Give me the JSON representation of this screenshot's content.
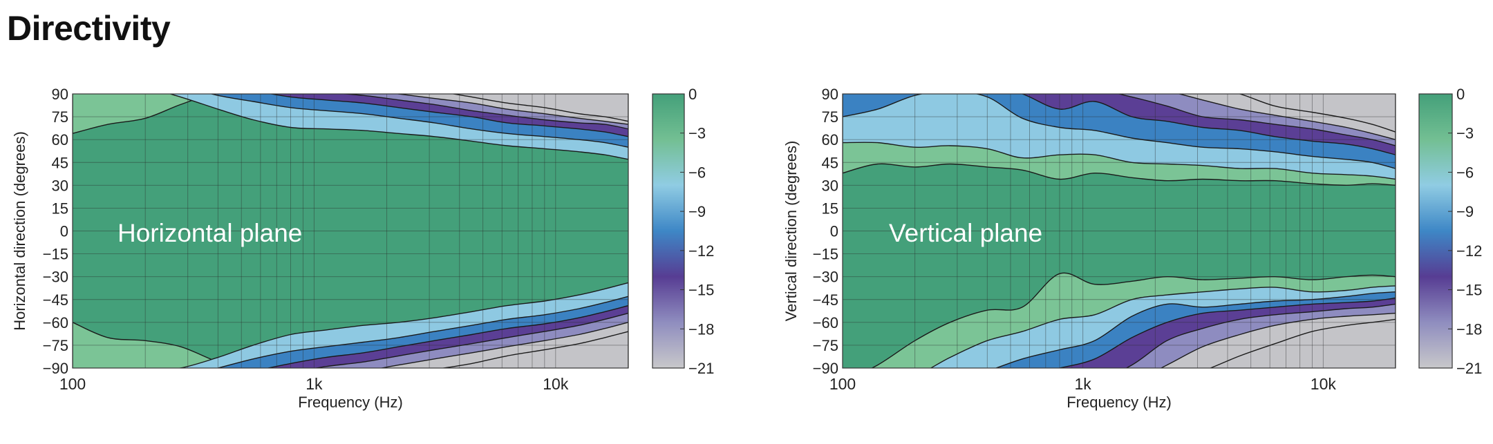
{
  "page": {
    "title": "Directivity"
  },
  "chart_data": [
    {
      "type": "contour",
      "plane_label": "Horizontal plane",
      "xlabel": "Frequency (Hz)",
      "ylabel": "Horizontal direction (degrees)",
      "xscale": "log",
      "xlim": [
        100,
        20000
      ],
      "ylim": [
        -90,
        90
      ],
      "x_ticks": [
        100,
        1000,
        10000
      ],
      "x_tick_labels": [
        "100",
        "1k",
        "10k"
      ],
      "y_ticks": [
        90,
        75,
        60,
        45,
        30,
        15,
        0,
        -15,
        -30,
        -45,
        -60,
        -75,
        -90
      ],
      "y_tick_labels": [
        "90",
        "75",
        "60",
        "45",
        "30",
        "15",
        "0",
        "-15",
        "-30",
        "-45",
        "-60",
        "-75",
        "-90"
      ],
      "contour_levels_db": [
        -3,
        -6,
        -9,
        -12,
        -15,
        -18,
        -21
      ],
      "freq_hz": [
        100,
        140,
        200,
        280,
        400,
        560,
        800,
        1120,
        1600,
        2240,
        3150,
        4500,
        6300,
        9000,
        12500,
        16000,
        20000
      ],
      "contours": {
        "upper": [
          [
            64,
            70,
            74,
            83,
            91,
            93,
            94,
            95,
            95,
            95,
            95,
            96,
            96,
            96,
            96,
            96,
            96
          ],
          [
            95,
            95,
            94,
            88,
            80,
            73,
            68,
            67,
            66,
            64,
            62,
            59,
            56,
            54,
            52,
            50,
            47
          ],
          [
            98,
            98,
            97,
            95,
            89,
            85,
            81,
            79,
            77,
            74,
            71,
            67,
            64,
            62,
            60,
            58,
            55
          ],
          [
            99,
            99,
            99,
            98,
            95,
            92,
            88,
            86,
            84,
            81,
            78,
            75,
            71,
            69,
            67,
            65,
            62
          ],
          [
            99,
            99,
            99,
            99,
            98,
            96,
            93,
            91,
            89,
            86,
            83,
            79,
            76,
            73,
            71,
            70,
            67
          ],
          [
            99,
            99,
            99,
            99,
            99,
            99,
            97,
            95,
            93,
            90,
            87,
            84,
            80,
            77,
            74,
            72,
            70
          ],
          [
            99,
            99,
            99,
            99,
            99,
            99,
            99,
            98,
            97,
            95,
            92,
            88,
            84,
            81,
            77,
            75,
            72
          ]
        ],
        "lower": [
          [
            -60,
            -70,
            -72,
            -76,
            -86,
            -93,
            -94,
            -95,
            -95,
            -95,
            -95,
            -96,
            -96,
            -96,
            -96,
            -96,
            -96
          ],
          [
            -92,
            -92,
            -92,
            -90,
            -83,
            -75,
            -68,
            -65,
            -62,
            -60,
            -57,
            -53,
            -49,
            -46,
            -42,
            -38,
            -34
          ],
          [
            -98,
            -98,
            -98,
            -96,
            -90,
            -84,
            -79,
            -76,
            -73,
            -70,
            -66,
            -62,
            -58,
            -55,
            -51,
            -47,
            -43
          ],
          [
            -99,
            -99,
            -99,
            -99,
            -96,
            -92,
            -87,
            -83,
            -80,
            -76,
            -72,
            -68,
            -64,
            -61,
            -57,
            -53,
            -49
          ],
          [
            -99,
            -99,
            -99,
            -99,
            -99,
            -97,
            -93,
            -89,
            -86,
            -82,
            -78,
            -74,
            -70,
            -66,
            -62,
            -58,
            -54
          ],
          [
            -99,
            -99,
            -99,
            -99,
            -99,
            -99,
            -98,
            -95,
            -92,
            -88,
            -84,
            -80,
            -76,
            -72,
            -68,
            -64,
            -60
          ],
          [
            -99,
            -99,
            -99,
            -99,
            -99,
            -99,
            -99,
            -99,
            -98,
            -95,
            -91,
            -87,
            -82,
            -78,
            -74,
            -70,
            -66
          ]
        ]
      },
      "colorbar": {
        "range": [
          -21,
          0
        ],
        "tick_labels": [
          "0",
          "−3",
          "−6",
          "−9",
          "−12",
          "−15",
          "−18",
          "−21"
        ],
        "colors": [
          "#44A07A",
          "#7BC496",
          "#8EC9E2",
          "#3B82C2",
          "#5B3F95",
          "#8E8CC0",
          "#C4C4C8"
        ],
        "gradient": [
          "#44A07A",
          "#73BF93",
          "#90CCE3",
          "#3E87C6",
          "#573D93",
          "#8F8DBF",
          "#C8C8CA"
        ]
      }
    },
    {
      "type": "contour",
      "plane_label": "Vertical plane",
      "xlabel": "Frequency (Hz)",
      "ylabel": "Vertical direction (degrees)",
      "xscale": "log",
      "xlim": [
        100,
        20000
      ],
      "ylim": [
        -90,
        90
      ],
      "x_ticks": [
        100,
        1000,
        10000
      ],
      "x_tick_labels": [
        "100",
        "1k",
        "10k"
      ],
      "y_ticks": [
        90,
        75,
        60,
        45,
        30,
        15,
        0,
        -15,
        -30,
        -45,
        -60,
        -75,
        -90
      ],
      "y_tick_labels": [
        "90",
        "75",
        "60",
        "45",
        "30",
        "15",
        "0",
        "-15",
        "-30",
        "-45",
        "-60",
        "-75",
        "-90"
      ],
      "contour_levels_db": [
        -3,
        -6,
        -9,
        -12,
        -15,
        -18,
        -21
      ],
      "freq_hz": [
        100,
        140,
        200,
        280,
        400,
        560,
        800,
        1120,
        1600,
        2240,
        3150,
        4500,
        6300,
        9000,
        12500,
        16000,
        20000
      ],
      "contours": {
        "upper": [
          [
            38,
            44,
            42,
            44,
            42,
            40,
            34,
            38,
            35,
            33,
            34,
            33,
            33,
            31,
            30,
            31,
            30
          ],
          [
            58,
            58,
            55,
            56,
            54,
            48,
            50,
            50,
            45,
            44,
            43,
            41,
            41,
            38,
            37,
            36,
            34
          ],
          [
            75,
            80,
            89,
            92,
            88,
            74,
            68,
            66,
            61,
            58,
            55,
            54,
            52,
            49,
            47,
            45,
            41
          ],
          [
            95,
            96,
            96,
            96,
            96,
            90,
            80,
            85,
            75,
            72,
            68,
            66,
            62,
            59,
            57,
            54,
            50
          ],
          [
            99,
            99,
            99,
            99,
            99,
            99,
            92,
            93,
            88,
            82,
            75,
            73,
            70,
            67,
            63,
            60,
            56
          ],
          [
            99,
            99,
            99,
            99,
            99,
            99,
            99,
            99,
            96,
            92,
            86,
            80,
            76,
            72,
            68,
            64,
            60
          ],
          [
            99,
            99,
            99,
            99,
            99,
            99,
            99,
            99,
            99,
            98,
            96,
            90,
            82,
            78,
            74,
            70,
            65
          ]
        ],
        "lower": [
          [
            -99,
            -88,
            -72,
            -60,
            -52,
            -50,
            -28,
            -35,
            -33,
            -30,
            -32,
            -31,
            -30,
            -32,
            -30,
            -29,
            -30
          ],
          [
            -99,
            -99,
            -95,
            -83,
            -72,
            -66,
            -58,
            -55,
            -45,
            -42,
            -40,
            -38,
            -37,
            -40,
            -39,
            -37,
            -36
          ],
          [
            -99,
            -99,
            -99,
            -99,
            -92,
            -84,
            -78,
            -72,
            -56,
            -48,
            -50,
            -48,
            -46,
            -45,
            -43,
            -41,
            -40
          ],
          [
            -99,
            -99,
            -99,
            -99,
            -99,
            -95,
            -90,
            -84,
            -70,
            -60,
            -54,
            -52,
            -50,
            -48,
            -47,
            -46,
            -44
          ],
          [
            -99,
            -99,
            -99,
            -99,
            -99,
            -99,
            -99,
            -99,
            -88,
            -72,
            -64,
            -58,
            -55,
            -53,
            -51,
            -50,
            -48
          ],
          [
            -99,
            -99,
            -99,
            -99,
            -99,
            -99,
            -99,
            -99,
            -99,
            -88,
            -76,
            -68,
            -62,
            -58,
            -56,
            -55,
            -54
          ],
          [
            -99,
            -99,
            -99,
            -99,
            -99,
            -99,
            -99,
            -99,
            -99,
            -99,
            -92,
            -82,
            -74,
            -66,
            -62,
            -60,
            -58
          ]
        ]
      },
      "colorbar": {
        "range": [
          -21,
          0
        ],
        "tick_labels": [
          "0",
          "−3",
          "−6",
          "−9",
          "−12",
          "−15",
          "−18",
          "−21"
        ],
        "colors": [
          "#44A07A",
          "#7BC496",
          "#8EC9E2",
          "#3B82C2",
          "#5B3F95",
          "#8E8CC0",
          "#C4C4C8"
        ],
        "gradient": [
          "#44A07A",
          "#73BF93",
          "#90CCE3",
          "#3E87C6",
          "#573D93",
          "#8F8DBF",
          "#C8C8CA"
        ]
      }
    }
  ]
}
